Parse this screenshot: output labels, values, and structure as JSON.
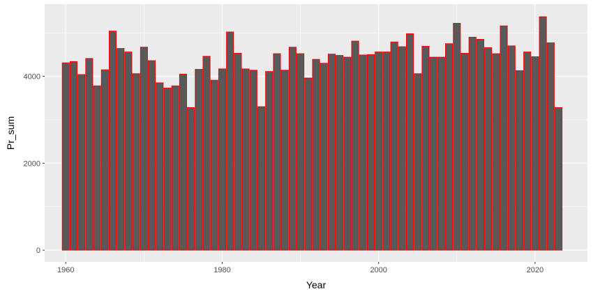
{
  "chart_data": {
    "type": "bar",
    "title": "",
    "xlabel": "Year",
    "ylabel": "Pr_sum",
    "xlim": [
      1957.3,
      2026.7
    ],
    "ylim": [
      -270,
      5660
    ],
    "x_ticks": [
      1960,
      1980,
      2000,
      2020
    ],
    "y_ticks": [
      0,
      2000,
      4000
    ],
    "x_tick_labels": [
      "1960",
      "1980",
      "2000",
      "2020"
    ],
    "y_tick_labels": [
      "0",
      "2000",
      "4000"
    ],
    "grid": true,
    "legend": "none",
    "colors": {
      "bar_fill": "#595959",
      "bar_outline": "#ff0000",
      "panel": "#ebebeb",
      "grid": "#ffffff"
    },
    "categories": [
      1960,
      1961,
      1962,
      1963,
      1964,
      1965,
      1966,
      1967,
      1968,
      1969,
      1970,
      1971,
      1972,
      1973,
      1974,
      1975,
      1976,
      1977,
      1978,
      1979,
      1980,
      1981,
      1982,
      1983,
      1984,
      1985,
      1986,
      1987,
      1988,
      1989,
      1990,
      1991,
      1992,
      1993,
      1994,
      1995,
      1996,
      1997,
      1998,
      1999,
      2000,
      2001,
      2002,
      2003,
      2004,
      2005,
      2006,
      2007,
      2008,
      2009,
      2010,
      2011,
      2012,
      2013,
      2014,
      2015,
      2016,
      2017,
      2018,
      2019,
      2020,
      2021,
      2022,
      2023
    ],
    "values": [
      4310,
      4340,
      4040,
      4410,
      3780,
      4150,
      5040,
      4640,
      4560,
      4060,
      4670,
      4360,
      3850,
      3730,
      3780,
      4050,
      3280,
      4160,
      4460,
      3910,
      4170,
      5020,
      4530,
      4170,
      4140,
      3300,
      4110,
      4520,
      4140,
      4670,
      4520,
      3960,
      4390,
      4300,
      4510,
      4480,
      4440,
      4810,
      4490,
      4500,
      4560,
      4560,
      4790,
      4680,
      4980,
      4060,
      4690,
      4440,
      4440,
      4750,
      5220,
      4530,
      4900,
      4850,
      4660,
      4520,
      5160,
      4700,
      4130,
      4560,
      4450,
      5370,
      4770,
      3280
    ]
  }
}
